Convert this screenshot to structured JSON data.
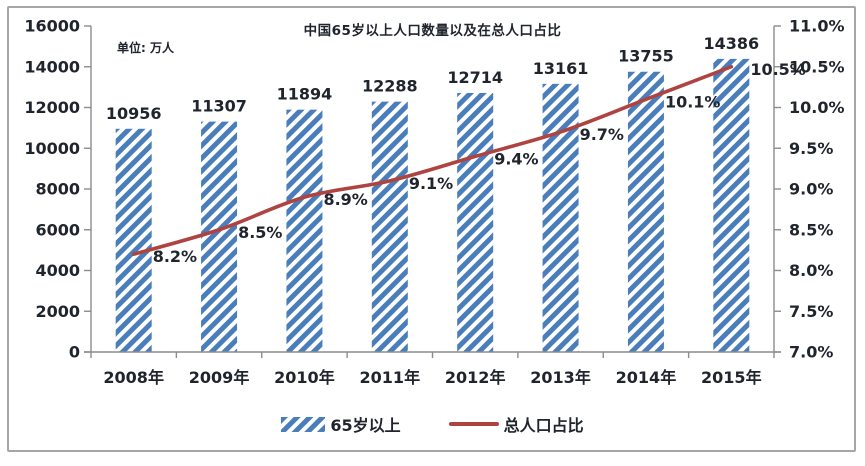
{
  "chart_data": {
    "type": "combo-bar-line",
    "title": "中国65岁以上人口数量以及在总人口占比",
    "unit_label": "单位: 万人",
    "categories": [
      "2008年",
      "2009年",
      "2010年",
      "2011年",
      "2012年",
      "2013年",
      "2014年",
      "2015年"
    ],
    "series": [
      {
        "name": "65岁以上",
        "type": "bar",
        "axis": "left",
        "values": [
          10956,
          11307,
          11894,
          12288,
          12714,
          13161,
          13755,
          14386
        ],
        "labels": [
          "10956",
          "11307",
          "11894",
          "12288",
          "12714",
          "13161",
          "13755",
          "14386"
        ]
      },
      {
        "name": "总人口占比",
        "type": "line",
        "axis": "right",
        "values": [
          8.2,
          8.5,
          8.9,
          9.1,
          9.4,
          9.7,
          10.1,
          10.5
        ],
        "labels": [
          "8.2%",
          "8.5%",
          "8.9%",
          "9.1%",
          "9.4%",
          "9.7%",
          "10.1%",
          "10.5%"
        ]
      }
    ],
    "left_axis": {
      "min": 0,
      "max": 16000,
      "step": 2000,
      "tick_labels": [
        "0",
        "2000",
        "4000",
        "6000",
        "8000",
        "10000",
        "12000",
        "14000",
        "16000"
      ]
    },
    "right_axis": {
      "min": 7.0,
      "max": 11.0,
      "step": 0.5,
      "tick_labels": [
        "7.0%",
        "7.5%",
        "8.0%",
        "8.5%",
        "9.0%",
        "9.5%",
        "10.0%",
        "10.5%",
        "11.0%"
      ]
    },
    "legend": {
      "position": "bottom",
      "items": [
        "65岁以上",
        "总人口占比"
      ]
    },
    "grid": false,
    "colors": {
      "bar": "#4A7EBB",
      "line": "#AF4340",
      "text": "#20242C",
      "axis": "#8C8C8C",
      "frame_border": "#A6A6A6",
      "background": "#FFFFFF"
    }
  }
}
